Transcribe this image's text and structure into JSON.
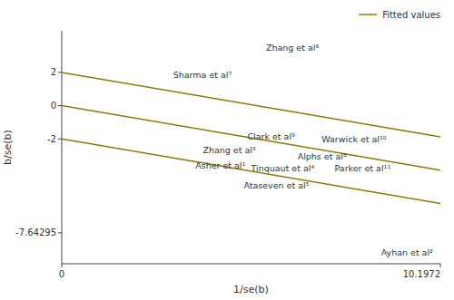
{
  "chart_data": {
    "type": "line",
    "xlabel": "1/se(b)",
    "ylabel": "b/se(b)",
    "xlim": [
      0,
      10.1972
    ],
    "ylim": [
      -9.5,
      4.5
    ],
    "xticks": [
      0,
      10.1972
    ],
    "yticks": [
      -7.64295,
      -2,
      0,
      2
    ],
    "grid": false,
    "legend": "upper right",
    "x": [
      0,
      10.1972
    ],
    "series": [
      {
        "name": "Fitted values",
        "color": "#8B7B00",
        "values": [
          2.0,
          -1.874936
        ]
      },
      {
        "color": "#8B7B00",
        "values": [
          0.0,
          -3.874936
        ]
      },
      {
        "color": "#8B7B00",
        "values": [
          -2.0,
          -5.874936
        ]
      }
    ],
    "annotations": [
      {
        "text": "Zhang et al⁶",
        "x": 5.5,
        "y": 3.5
      },
      {
        "text": "Sharma et al⁷",
        "x": 3.0,
        "y": 1.85
      },
      {
        "text": "Clark et al⁹",
        "x": 5.0,
        "y": -1.85
      },
      {
        "text": "Warwick et al¹⁰",
        "x": 7.0,
        "y": -2.0
      },
      {
        "text": "Zhang et al³",
        "x": 3.8,
        "y": -2.65
      },
      {
        "text": "Asher et al¹",
        "x": 3.6,
        "y": -2.9
      },
      {
        "text": "Tinquaut et al⁴",
        "x": 5.1,
        "y": -3.05
      },
      {
        "text": "Ataseven et al⁵",
        "x": 4.9,
        "y": -3.35
      },
      {
        "text": "Alphs et al⁸",
        "x": 6.35,
        "y": -3.05
      },
      {
        "text": "Parker et al¹¹",
        "x": 7.35,
        "y": -3.05
      },
      {
        "text": "Ayhan et al²",
        "x": 8.6,
        "y": -8.8
      }
    ]
  }
}
